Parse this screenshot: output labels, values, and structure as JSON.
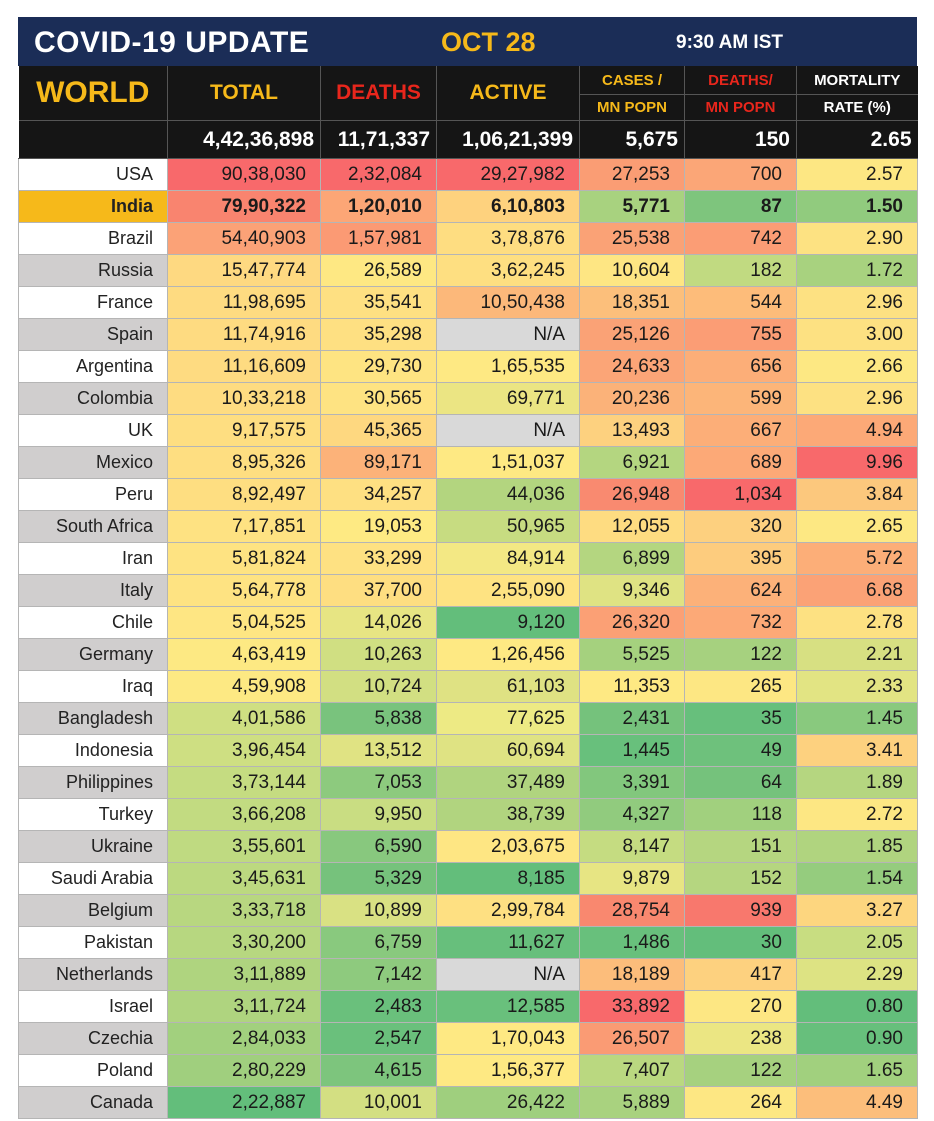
{
  "header": {
    "title": "COVID-19 UPDATE",
    "date": "OCT 28",
    "time": "9:30 AM IST"
  },
  "columns": {
    "world": "WORLD",
    "total": "TOTAL",
    "deaths": "DEATHS",
    "active": "ACTIVE",
    "cases_mn_l1": "CASES /",
    "cases_mn_l2": "MN POPN",
    "deaths_mn_l1": "DEATHS/",
    "deaths_mn_l2": "MN POPN",
    "mortality_l1": "MORTALITY",
    "mortality_l2": "RATE (%)"
  },
  "world": {
    "total": "4,42,36,898",
    "deaths": "11,71,337",
    "active": "1,06,21,399",
    "cases_mn": "5,675",
    "deaths_mn": "150",
    "mortality": "2.65"
  },
  "colors": {
    "banner": "#1b2d57",
    "accent_yellow": "#f6b91a",
    "accent_red": "#e8261c",
    "India_label_bg": "#f6b91a"
  },
  "rows": [
    {
      "country": "USA",
      "total": "90,38,030",
      "deaths": "2,32,084",
      "active": "29,27,982",
      "cases_mn": "27,253",
      "deaths_mn": "700",
      "mortality": "2.57",
      "label_bg": "#ffffff",
      "colors": [
        "#f8696b",
        "#f8696b",
        "#f8696b",
        "#fa9d74",
        "#fba677",
        "#fde783"
      ]
    },
    {
      "country": "India",
      "total": "79,90,322",
      "deaths": "1,20,010",
      "active": "6,10,803",
      "cases_mn": "5,771",
      "deaths_mn": "87",
      "mortality": "1.50",
      "label_bg": "#f6b91a",
      "bold": true,
      "colors": [
        "#f9846f",
        "#fca676",
        "#fed27e",
        "#a8d27f",
        "#7ec57d",
        "#91cb7e"
      ]
    },
    {
      "country": "Brazil",
      "total": "54,40,903",
      "deaths": "1,57,981",
      "active": "3,78,876",
      "cases_mn": "25,538",
      "deaths_mn": "742",
      "mortality": "2.90",
      "label_bg": "#ffffff",
      "colors": [
        "#fba277",
        "#fb9a74",
        "#fedd81",
        "#faa276",
        "#fb9d75",
        "#fde282"
      ]
    },
    {
      "country": "Russia",
      "total": "15,47,774",
      "deaths": "26,589",
      "active": "3,62,245",
      "cases_mn": "10,604",
      "deaths_mn": "182",
      "mortality": "1.72",
      "label_bg": "#d0cece",
      "colors": [
        "#fed981",
        "#fee883",
        "#fedf81",
        "#fee683",
        "#c1da81",
        "#a8d27f"
      ]
    },
    {
      "country": "France",
      "total": "11,98,695",
      "deaths": "35,541",
      "active": "10,50,438",
      "cases_mn": "18,351",
      "deaths_mn": "544",
      "mortality": "2.96",
      "label_bg": "#ffffff",
      "colors": [
        "#fedb81",
        "#fee082",
        "#fcb87a",
        "#fcbf7b",
        "#fdbc7a",
        "#fde182"
      ]
    },
    {
      "country": "Spain",
      "total": "11,74,916",
      "deaths": "35,298",
      "active": "N/A",
      "cases_mn": "25,126",
      "deaths_mn": "755",
      "mortality": "3.00",
      "label_bg": "#d0cece",
      "colors": [
        "#fedb81",
        "#fee082",
        "#d9d9d9",
        "#faa276",
        "#fb9d75",
        "#fde182"
      ]
    },
    {
      "country": "Argentina",
      "total": "11,16,609",
      "deaths": "29,730",
      "active": "1,65,535",
      "cases_mn": "24,633",
      "deaths_mn": "656",
      "mortality": "2.66",
      "label_bg": "#ffffff",
      "colors": [
        "#fedb81",
        "#fee482",
        "#fee983",
        "#fba577",
        "#fcae78",
        "#fde883"
      ]
    },
    {
      "country": "Colombia",
      "total": "10,33,218",
      "deaths": "30,565",
      "active": "69,771",
      "cases_mn": "20,236",
      "deaths_mn": "599",
      "mortality": "2.96",
      "label_bg": "#d0cece",
      "colors": [
        "#fedc81",
        "#fee382",
        "#ebe583",
        "#fbb279",
        "#fcb579",
        "#fde182"
      ]
    },
    {
      "country": "UK",
      "total": "9,17,575",
      "deaths": "45,365",
      "active": "N/A",
      "cases_mn": "13,493",
      "deaths_mn": "667",
      "mortality": "4.94",
      "label_bg": "#ffffff",
      "colors": [
        "#fede81",
        "#fed880",
        "#d9d9d9",
        "#fdd17f",
        "#fcae78",
        "#fca977"
      ]
    },
    {
      "country": "Mexico",
      "total": "8,95,326",
      "deaths": "89,171",
      "active": "1,51,037",
      "cases_mn": "6,921",
      "deaths_mn": "689",
      "mortality": "9.96",
      "label_bg": "#d0cece",
      "colors": [
        "#fede81",
        "#fcb279",
        "#fee983",
        "#b4d680",
        "#fca977",
        "#f8696b"
      ]
    },
    {
      "country": "Peru",
      "total": "8,92,497",
      "deaths": "34,257",
      "active": "44,036",
      "cases_mn": "26,948",
      "deaths_mn": "1,034",
      "mortality": "3.84",
      "label_bg": "#ffffff",
      "colors": [
        "#fede81",
        "#fee082",
        "#b3d57f",
        "#f98a70",
        "#f8696b",
        "#fcc87d"
      ]
    },
    {
      "country": "South Africa",
      "total": "7,17,851",
      "deaths": "19,053",
      "active": "50,965",
      "cases_mn": "12,055",
      "deaths_mn": "320",
      "mortality": "2.65",
      "label_bg": "#d0cece",
      "colors": [
        "#fee282",
        "#feea83",
        "#c7dc81",
        "#fedc81",
        "#fdd07f",
        "#fde883"
      ]
    },
    {
      "country": "Iran",
      "total": "5,81,824",
      "deaths": "33,299",
      "active": "84,914",
      "cases_mn": "6,899",
      "deaths_mn": "395",
      "mortality": "5.72",
      "label_bg": "#ffffff",
      "colors": [
        "#fee382",
        "#fee182",
        "#f3e884",
        "#b4d680",
        "#fdcc7e",
        "#fcae78"
      ]
    },
    {
      "country": "Italy",
      "total": "5,64,778",
      "deaths": "37,700",
      "active": "2,55,090",
      "cases_mn": "9,346",
      "deaths_mn": "624",
      "mortality": "6.68",
      "label_bg": "#d0cece",
      "colors": [
        "#fee382",
        "#fede81",
        "#fee382",
        "#dfe383",
        "#fcb179",
        "#fba276"
      ]
    },
    {
      "country": "Chile",
      "total": "5,04,525",
      "deaths": "14,026",
      "active": "9,120",
      "cases_mn": "26,320",
      "deaths_mn": "732",
      "mortality": "2.78",
      "label_bg": "#ffffff",
      "colors": [
        "#fee683",
        "#e7e583",
        "#63be7b",
        "#fba075",
        "#fca977",
        "#fde182"
      ]
    },
    {
      "country": "Germany",
      "total": "4,63,419",
      "deaths": "10,263",
      "active": "1,26,456",
      "cases_mn": "5,525",
      "deaths_mn": "122",
      "mortality": "2.21",
      "label_bg": "#d0cece",
      "colors": [
        "#fde983",
        "#d0df82",
        "#fee983",
        "#a5d17e",
        "#a6d17f",
        "#d7e082"
      ]
    },
    {
      "country": "Iraq",
      "total": "4,59,908",
      "deaths": "10,724",
      "active": "61,103",
      "cases_mn": "11,353",
      "deaths_mn": "265",
      "mortality": "2.33",
      "label_bg": "#ffffff",
      "colors": [
        "#fde983",
        "#d2df82",
        "#dfe283",
        "#fee983",
        "#fde783",
        "#e2e483"
      ]
    },
    {
      "country": "Bangladesh",
      "total": "4,01,586",
      "deaths": "5,838",
      "active": "77,625",
      "cases_mn": "2,431",
      "deaths_mn": "35",
      "mortality": "1.45",
      "label_bg": "#d0cece",
      "colors": [
        "#cfdf82",
        "#79c37d",
        "#edea84",
        "#75c27c",
        "#67bf7c",
        "#89c97e"
      ]
    },
    {
      "country": "Indonesia",
      "total": "3,96,454",
      "deaths": "13,512",
      "active": "60,694",
      "cases_mn": "1,445",
      "deaths_mn": "49",
      "mortality": "3.41",
      "label_bg": "#ffffff",
      "colors": [
        "#cedf82",
        "#e0e383",
        "#dfe383",
        "#68c07c",
        "#6ec17c",
        "#fdd17f"
      ]
    },
    {
      "country": "Philippines",
      "total": "3,73,144",
      "deaths": "7,053",
      "active": "37,489",
      "cases_mn": "3,391",
      "deaths_mn": "64",
      "mortality": "1.89",
      "label_bg": "#d0cece",
      "colors": [
        "#c5dc81",
        "#8dca7e",
        "#b0d47f",
        "#82c77d",
        "#75c27c",
        "#b5d680"
      ]
    },
    {
      "country": "Turkey",
      "total": "3,66,208",
      "deaths": "9,950",
      "active": "38,739",
      "cases_mn": "4,327",
      "deaths_mn": "118",
      "mortality": "2.72",
      "label_bg": "#ffffff",
      "colors": [
        "#c2db81",
        "#c9dd82",
        "#b1d47f",
        "#91cb7e",
        "#a1d07e",
        "#fde783"
      ]
    },
    {
      "country": "Ukraine",
      "total": "3,55,601",
      "deaths": "6,590",
      "active": "2,03,675",
      "cases_mn": "8,147",
      "deaths_mn": "151",
      "mortality": "1.85",
      "label_bg": "#d0cece",
      "colors": [
        "#bfda81",
        "#88c87e",
        "#fee683",
        "#c5dc81",
        "#b5d680",
        "#b0d47f"
      ]
    },
    {
      "country": "Saudi Arabia",
      "total": "3,45,631",
      "deaths": "5,329",
      "active": "8,185",
      "cases_mn": "9,879",
      "deaths_mn": "152",
      "mortality": "1.54",
      "label_bg": "#ffffff",
      "colors": [
        "#bcd980",
        "#76c27c",
        "#63be7b",
        "#e7e583",
        "#b5d680",
        "#95cc7e"
      ]
    },
    {
      "country": "Belgium",
      "total": "3,33,718",
      "deaths": "10,899",
      "active": "2,99,784",
      "cases_mn": "28,754",
      "deaths_mn": "939",
      "mortality": "3.27",
      "label_bg": "#d0cece",
      "colors": [
        "#b8d780",
        "#d9e183",
        "#fee082",
        "#f9886f",
        "#f8786d",
        "#fdd67f"
      ]
    },
    {
      "country": "Pakistan",
      "total": "3,30,200",
      "deaths": "6,759",
      "active": "11,627",
      "cases_mn": "1,486",
      "deaths_mn": "30",
      "mortality": "2.05",
      "label_bg": "#ffffff",
      "colors": [
        "#b7d780",
        "#89c97e",
        "#67bf7c",
        "#68c07c",
        "#63be7b",
        "#c8dd81"
      ]
    },
    {
      "country": "Netherlands",
      "total": "3,11,889",
      "deaths": "7,142",
      "active": "N/A",
      "cases_mn": "18,189",
      "deaths_mn": "417",
      "mortality": "2.29",
      "label_bg": "#d0cece",
      "colors": [
        "#afd47f",
        "#8eca7e",
        "#d9d9d9",
        "#fcbd7b",
        "#fdd17f",
        "#dde383"
      ]
    },
    {
      "country": "Israel",
      "total": "3,11,724",
      "deaths": "2,483",
      "active": "12,585",
      "cases_mn": "33,892",
      "deaths_mn": "270",
      "mortality": "0.80",
      "label_bg": "#ffffff",
      "colors": [
        "#afd47f",
        "#6ac07c",
        "#69c07c",
        "#f8696b",
        "#fde783",
        "#63be7b"
      ]
    },
    {
      "country": "Czechia",
      "total": "2,84,033",
      "deaths": "2,547",
      "active": "1,70,043",
      "cases_mn": "26,507",
      "deaths_mn": "238",
      "mortality": "0.90",
      "label_bg": "#d0cece",
      "colors": [
        "#a2d07e",
        "#6ac07c",
        "#fee983",
        "#fa9b74",
        "#ebe683",
        "#67bf7c"
      ]
    },
    {
      "country": "Poland",
      "total": "2,80,229",
      "deaths": "4,615",
      "active": "1,56,377",
      "cases_mn": "7,407",
      "deaths_mn": "122",
      "mortality": "1.65",
      "label_bg": "#ffffff",
      "colors": [
        "#a0cf7e",
        "#7dc57d",
        "#fee983",
        "#bad880",
        "#a6d17f",
        "#a1d07e"
      ]
    },
    {
      "country": "Canada",
      "total": "2,22,887",
      "deaths": "10,001",
      "active": "26,422",
      "cases_mn": "5,889",
      "deaths_mn": "264",
      "mortality": "4.49",
      "label_bg": "#d0cece",
      "colors": [
        "#63be7b",
        "#d3df82",
        "#9fcf7e",
        "#a9d27f",
        "#fde783",
        "#fcbe7b"
      ]
    }
  ]
}
